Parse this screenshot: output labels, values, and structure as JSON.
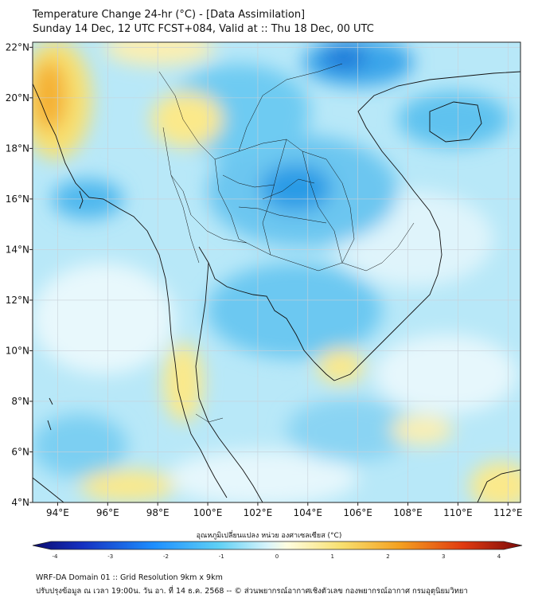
{
  "header": {
    "title": "Temperature Change 24-hr (°C) - [Data Assimilation]",
    "subtitle": "Sunday 14 Dec, 12 UTC FCST+084, Valid at :: Thu 18 Dec, 00 UTC"
  },
  "map": {
    "lon_range": [
      93,
      112.5
    ],
    "lat_range": [
      4,
      22.2
    ],
    "lon_ticks": [
      "94°E",
      "96°E",
      "98°E",
      "100°E",
      "102°E",
      "104°E",
      "106°E",
      "108°E",
      "110°E",
      "112°E"
    ],
    "lat_ticks": [
      "22°N",
      "20°N",
      "18°N",
      "16°N",
      "14°N",
      "12°N",
      "10°N",
      "8°N",
      "6°N",
      "4°N"
    ]
  },
  "colorbar": {
    "title": "อุณหภูมิเปลี่ยนแปลง หน่วย องศาเซลเซียส (°C)",
    "tick_labels": [
      "-4",
      "-3",
      "-2",
      "-1",
      "0",
      "1",
      "2",
      "3",
      "4"
    ],
    "range": [
      -4,
      4
    ],
    "colors": [
      "#0b0b6e",
      "#1d3fcf",
      "#1e90ff",
      "#5fd0f5",
      "#d8f4fb",
      "#fffde0",
      "#f8e070",
      "#f4a020",
      "#e03a10",
      "#7a0a0a"
    ]
  },
  "footer": {
    "line1": "WRF-DA Domain 01 :: Grid Resolution 9km x 9km",
    "line2": "ปรับปรุงข้อมูล ณ เวลา 19:00น. วัน อา. ที่ 14 ธ.ค. 2568 -- © ส่วนพยากรณ์อากาศเชิงตัวเลข กองพยากรณ์อากาศ กรมอุตุนิยมวิทยา"
  }
}
